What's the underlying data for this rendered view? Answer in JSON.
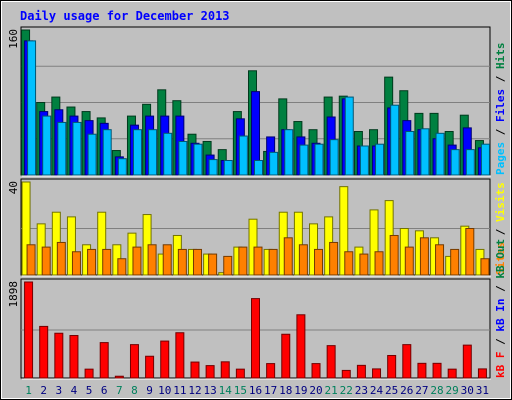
{
  "chart_data": {
    "type": "bar",
    "title": "Daily usage for December 2013",
    "categories": [
      "1",
      "2",
      "3",
      "4",
      "5",
      "6",
      "7",
      "8",
      "9",
      "10",
      "11",
      "12",
      "13",
      "14",
      "15",
      "16",
      "17",
      "18",
      "19",
      "20",
      "21",
      "22",
      "23",
      "24",
      "25",
      "26",
      "27",
      "28",
      "29",
      "30",
      "31"
    ],
    "weekend_days": [
      "1",
      "7",
      "8",
      "14",
      "15",
      "21",
      "22",
      "28",
      "29"
    ],
    "panels": [
      {
        "id": "hits-files-pages",
        "ymax": 160,
        "ymax_label": "160",
        "series": [
          {
            "name": "Hits",
            "color": "#008040",
            "values": [
              160,
              80,
              86,
              75,
              70,
              63,
              27,
              65,
              78,
              94,
              82,
              45,
              37,
              28,
              70,
              115,
              26,
              84,
              59,
              50,
              86,
              87,
              48,
              50,
              108,
              93,
              68,
              68,
              48,
              66,
              38
            ]
          },
          {
            "name": "Files",
            "color": "#0000ff",
            "values": [
              148,
              70,
              72,
              65,
              60,
              57,
              20,
              55,
              65,
              65,
              65,
              35,
              22,
              16,
              62,
              92,
              42,
              50,
              42,
              35,
              64,
              84,
              32,
              32,
              74,
              60,
              50,
              40,
              33,
              52,
              30
            ]
          },
          {
            "name": "Pages",
            "color": "#00c0ff",
            "values": [
              148,
              65,
              58,
              58,
              45,
              50,
              18,
              50,
              50,
              46,
              37,
              34,
              17,
              16,
              43,
              16,
              25,
              50,
              33,
              34,
              39,
              86,
              32,
              34,
              77,
              48,
              51,
              46,
              28,
              28,
              34
            ]
          }
        ],
        "legend": [
          {
            "label": "Pages",
            "color": "#00c0ff"
          },
          {
            "label": " / ",
            "color": "#000000"
          },
          {
            "label": "Files",
            "color": "#0000ff"
          },
          {
            "label": " / ",
            "color": "#000000"
          },
          {
            "label": "Hits",
            "color": "#008040"
          }
        ]
      },
      {
        "id": "visits-sites",
        "ymax": 40,
        "ymax_label": "40",
        "series": [
          {
            "name": "Visits",
            "color": "#ffff00",
            "values": [
              40,
              22,
              27,
              25,
              13,
              27,
              13,
              18,
              26,
              9,
              17,
              11,
              9,
              1,
              12,
              24,
              11,
              27,
              27,
              22,
              25,
              38,
              12,
              28,
              32,
              20,
              19,
              16,
              8,
              21,
              11
            ]
          },
          {
            "name": "Sites",
            "color": "#ff8000",
            "values": [
              13,
              12,
              14,
              10,
              11,
              11,
              7,
              12,
              13,
              13,
              11,
              11,
              9,
              8,
              12,
              12,
              11,
              16,
              13,
              11,
              14,
              10,
              9,
              10,
              17,
              12,
              16,
              13,
              11,
              20,
              7
            ]
          }
        ],
        "legend": [
          {
            "label": "Sites",
            "color": "#ff8000"
          },
          {
            "label": " / ",
            "color": "#000000"
          },
          {
            "label": "Visits",
            "color": "#ffff00"
          }
        ]
      },
      {
        "id": "kbytes",
        "ymax": 1898,
        "ymax_label": "1898",
        "series": [
          {
            "name": "kB F",
            "color": "#ff0000",
            "values": [
              1898,
              1020,
              885,
              840,
              175,
              700,
              35,
              660,
              430,
              730,
              895,
              315,
              245,
              320,
              175,
              1570,
              285,
              865,
              1250,
              285,
              640,
              150,
              250,
              180,
              445,
              660,
              290,
              290,
              175,
              650,
              180
            ]
          }
        ],
        "legend": [
          {
            "label": "kB F",
            "color": "#ff0000"
          },
          {
            "label": " / ",
            "color": "#000000"
          },
          {
            "label": "kB In",
            "color": "#0000ff"
          },
          {
            "label": " / ",
            "color": "#000000"
          },
          {
            "label": "kB Out",
            "color": "#008040"
          }
        ]
      }
    ],
    "colors": {
      "title": "#0000ff",
      "plot_bg": "#c0c0c0",
      "frame": "#000000",
      "weekday_label": "#000080",
      "weekend_label": "#00805c"
    }
  }
}
